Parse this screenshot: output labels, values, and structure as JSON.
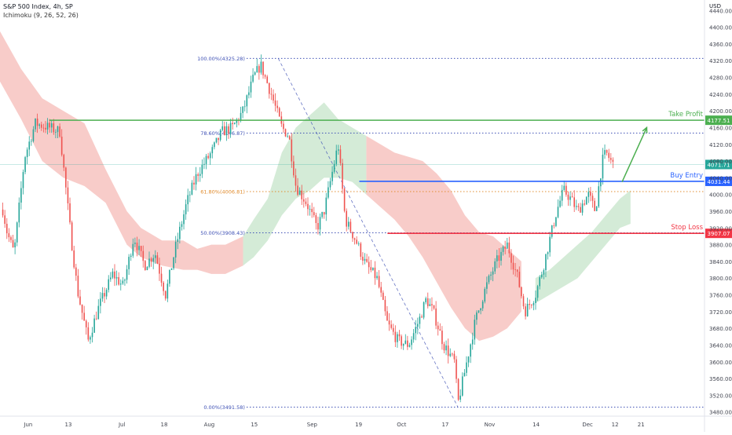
{
  "header": {
    "title": "S&P 500 Index, 4h, SP",
    "indicator": "Ichimoku (9, 26, 52, 26)",
    "currency": "USD"
  },
  "colors": {
    "up": "#26a69a",
    "down": "#ef5350",
    "cloud_bear": "#f7c6c3",
    "cloud_bull": "#cfe9d3",
    "take_profit": "#4caf50",
    "buy_entry": "#2962ff",
    "stop_loss": "#f23645",
    "fib": "#3f51b5",
    "fib_618": "#e08b2d",
    "current_price": "#26a69a"
  },
  "chart_data": {
    "type": "candlestick",
    "ylim": [
      3470,
      4465
    ],
    "y_ticks": [
      3480,
      3520,
      3560,
      3600,
      3640,
      3680,
      3720,
      3760,
      3800,
      3840,
      3880,
      3920,
      3960,
      4000,
      4040,
      4080,
      4120,
      4160,
      4200,
      4240,
      4280,
      4320,
      4360,
      4400,
      4440
    ],
    "x_ticks": [
      {
        "label": "Jun",
        "x": 0.04
      },
      {
        "label": "13",
        "x": 0.097
      },
      {
        "label": "Jul",
        "x": 0.173
      },
      {
        "label": "18",
        "x": 0.233
      },
      {
        "label": "Aug",
        "x": 0.297
      },
      {
        "label": "15",
        "x": 0.361
      },
      {
        "label": "Sep",
        "x": 0.443
      },
      {
        "label": "19",
        "x": 0.509
      },
      {
        "label": "Oct",
        "x": 0.57
      },
      {
        "label": "17",
        "x": 0.632
      },
      {
        "label": "Nov",
        "x": 0.695
      },
      {
        "label": "14",
        "x": 0.761
      },
      {
        "label": "Dec",
        "x": 0.834
      },
      {
        "label": "12",
        "x": 0.873
      },
      {
        "label": "21",
        "x": 0.91
      }
    ],
    "price_path": [
      [
        0.0,
        4000
      ],
      [
        0.01,
        3910
      ],
      [
        0.02,
        3860
      ],
      [
        0.035,
        4090
      ],
      [
        0.05,
        4170
      ],
      [
        0.07,
        4160
      ],
      [
        0.085,
        4150
      ],
      [
        0.1,
        3910
      ],
      [
        0.11,
        3770
      ],
      [
        0.125,
        3650
      ],
      [
        0.14,
        3730
      ],
      [
        0.16,
        3810
      ],
      [
        0.175,
        3780
      ],
      [
        0.19,
        3900
      ],
      [
        0.205,
        3830
      ],
      [
        0.22,
        3860
      ],
      [
        0.235,
        3760
      ],
      [
        0.25,
        3880
      ],
      [
        0.265,
        3980
      ],
      [
        0.28,
        4050
      ],
      [
        0.3,
        4100
      ],
      [
        0.315,
        4150
      ],
      [
        0.33,
        4160
      ],
      [
        0.345,
        4200
      ],
      [
        0.36,
        4280
      ],
      [
        0.37,
        4310
      ],
      [
        0.385,
        4240
      ],
      [
        0.4,
        4160
      ],
      [
        0.41,
        4140
      ],
      [
        0.42,
        4020
      ],
      [
        0.435,
        3980
      ],
      [
        0.45,
        3920
      ],
      [
        0.46,
        3960
      ],
      [
        0.47,
        4040
      ],
      [
        0.48,
        4120
      ],
      [
        0.49,
        3940
      ],
      [
        0.505,
        3890
      ],
      [
        0.52,
        3830
      ],
      [
        0.535,
        3800
      ],
      [
        0.55,
        3690
      ],
      [
        0.565,
        3650
      ],
      [
        0.58,
        3640
      ],
      [
        0.595,
        3700
      ],
      [
        0.605,
        3750
      ],
      [
        0.615,
        3720
      ],
      [
        0.63,
        3640
      ],
      [
        0.645,
        3600
      ],
      [
        0.65,
        3500
      ],
      [
        0.665,
        3620
      ],
      [
        0.675,
        3700
      ],
      [
        0.69,
        3780
      ],
      [
        0.705,
        3840
      ],
      [
        0.72,
        3880
      ],
      [
        0.735,
        3800
      ],
      [
        0.745,
        3720
      ],
      [
        0.76,
        3760
      ],
      [
        0.77,
        3820
      ],
      [
        0.78,
        3890
      ],
      [
        0.79,
        3960
      ],
      [
        0.8,
        4010
      ],
      [
        0.81,
        3990
      ],
      [
        0.82,
        3960
      ],
      [
        0.835,
        4000
      ],
      [
        0.845,
        3960
      ],
      [
        0.855,
        4080
      ],
      [
        0.86,
        4100
      ],
      [
        0.87,
        4072
      ]
    ],
    "cloud_upper": [
      [
        0.0,
        4390
      ],
      [
        0.03,
        4300
      ],
      [
        0.06,
        4230
      ],
      [
        0.09,
        4200
      ],
      [
        0.12,
        4170
      ],
      [
        0.15,
        4060
      ],
      [
        0.18,
        3960
      ],
      [
        0.2,
        3920
      ],
      [
        0.23,
        3890
      ],
      [
        0.26,
        3890
      ],
      [
        0.28,
        3870
      ],
      [
        0.3,
        3880
      ],
      [
        0.32,
        3880
      ],
      [
        0.345,
        3900
      ],
      [
        0.36,
        3940
      ],
      [
        0.38,
        3990
      ],
      [
        0.4,
        4100
      ],
      [
        0.42,
        4160
      ],
      [
        0.44,
        4190
      ],
      [
        0.46,
        4220
      ],
      [
        0.48,
        4180
      ],
      [
        0.5,
        4160
      ],
      [
        0.52,
        4140
      ],
      [
        0.54,
        4120
      ],
      [
        0.56,
        4100
      ],
      [
        0.58,
        4090
      ],
      [
        0.6,
        4080
      ],
      [
        0.62,
        4050
      ],
      [
        0.64,
        4010
      ],
      [
        0.66,
        3950
      ],
      [
        0.68,
        3910
      ],
      [
        0.7,
        3900
      ],
      [
        0.72,
        3870
      ],
      [
        0.74,
        3840
      ],
      [
        0.76,
        3800
      ],
      [
        0.78,
        3820
      ],
      [
        0.8,
        3850
      ],
      [
        0.82,
        3880
      ],
      [
        0.84,
        3910
      ],
      [
        0.86,
        3950
      ],
      [
        0.88,
        3990
      ],
      [
        0.895,
        4010
      ]
    ],
    "cloud_lower": [
      [
        0.0,
        4270
      ],
      [
        0.03,
        4180
      ],
      [
        0.06,
        4080
      ],
      [
        0.09,
        4040
      ],
      [
        0.12,
        4020
      ],
      [
        0.15,
        3980
      ],
      [
        0.18,
        3880
      ],
      [
        0.2,
        3850
      ],
      [
        0.23,
        3830
      ],
      [
        0.26,
        3820
      ],
      [
        0.28,
        3820
      ],
      [
        0.3,
        3810
      ],
      [
        0.32,
        3810
      ],
      [
        0.345,
        3830
      ],
      [
        0.36,
        3850
      ],
      [
        0.38,
        3890
      ],
      [
        0.4,
        3950
      ],
      [
        0.42,
        3990
      ],
      [
        0.44,
        4010
      ],
      [
        0.46,
        4040
      ],
      [
        0.48,
        4040
      ],
      [
        0.5,
        4030
      ],
      [
        0.52,
        4000
      ],
      [
        0.54,
        3970
      ],
      [
        0.56,
        3940
      ],
      [
        0.58,
        3900
      ],
      [
        0.6,
        3850
      ],
      [
        0.62,
        3790
      ],
      [
        0.64,
        3730
      ],
      [
        0.66,
        3680
      ],
      [
        0.68,
        3650
      ],
      [
        0.7,
        3660
      ],
      [
        0.72,
        3680
      ],
      [
        0.74,
        3720
      ],
      [
        0.76,
        3740
      ],
      [
        0.78,
        3760
      ],
      [
        0.8,
        3780
      ],
      [
        0.82,
        3800
      ],
      [
        0.84,
        3840
      ],
      [
        0.86,
        3880
      ],
      [
        0.88,
        3920
      ],
      [
        0.895,
        3930
      ]
    ],
    "cloud_bear_ranges": [
      [
        0.0,
        0.345
      ],
      [
        0.52,
        0.745
      ]
    ],
    "fib_levels": [
      {
        "label": "100.00%(4325.28)",
        "price": 4325.28,
        "color_key": "fib"
      },
      {
        "label": "78.60%(4146.87)",
        "price": 4146.87,
        "color_key": "fib"
      },
      {
        "label": "61.80%(4006.81)",
        "price": 4006.81,
        "color_key": "fib_618"
      },
      {
        "label": "50.00%(3908.43)",
        "price": 3908.43,
        "color_key": "fib"
      },
      {
        "label": "0.00%(3491.58)",
        "price": 3491.58,
        "color_key": "fib"
      }
    ],
    "fib_start_x": 0.35,
    "fib_trend": {
      "from": [
        0.395,
        4325.28
      ],
      "to": [
        0.65,
        3491.58
      ]
    },
    "levels": [
      {
        "name": "Take Profit",
        "price": 4177.51,
        "price_label": "4177.51",
        "color_key": "take_profit",
        "start_x": 0.07
      },
      {
        "name": "Buy Entry",
        "price": 4031.44,
        "price_label": "4031.44",
        "color_key": "buy_entry",
        "start_x": 0.51
      },
      {
        "name": "Stop Loss",
        "price": 3907.07,
        "price_label": "3907.07",
        "color_key": "stop_loss",
        "start_x": 0.55
      }
    ],
    "current_price": {
      "price": 4071.71,
      "label": "4071.71"
    },
    "projection": {
      "from": [
        0.883,
        4030
      ],
      "to": [
        0.918,
        4160
      ]
    }
  }
}
